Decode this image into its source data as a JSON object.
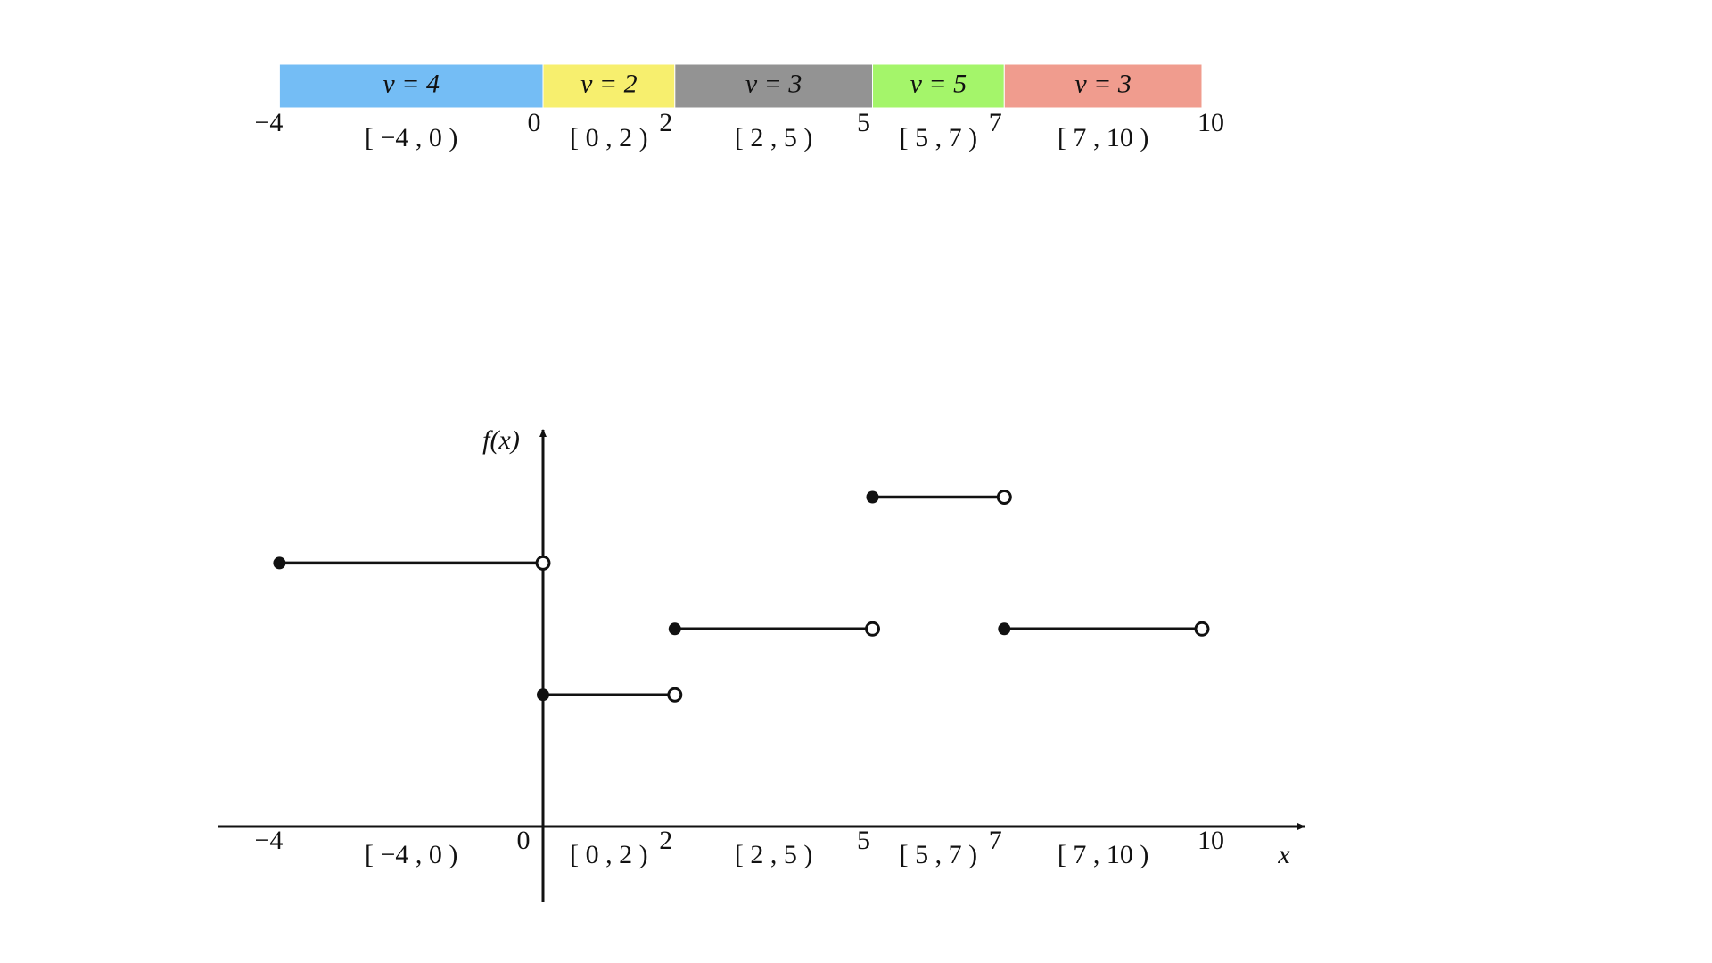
{
  "intervals": [
    {
      "start": -4,
      "end": 0,
      "value": 4,
      "color": "#74bdf5",
      "value_label": "v = 4",
      "interval_label": "[ −4 , 0 )"
    },
    {
      "start": 0,
      "end": 2,
      "value": 2,
      "color": "#f7ef6e",
      "value_label": "v = 2",
      "interval_label": "[ 0 , 2 )"
    },
    {
      "start": 2,
      "end": 5,
      "value": 3,
      "color": "#939393",
      "value_label": "v = 3",
      "interval_label": "[ 2 , 5 )"
    },
    {
      "start": 5,
      "end": 7,
      "value": 5,
      "color": "#a4f56a",
      "value_label": "v = 5",
      "interval_label": "[ 5 , 7 )"
    },
    {
      "start": 7,
      "end": 10,
      "value": 3,
      "color": "#f09c8e",
      "value_label": "v = 3",
      "interval_label": "[ 7 , 10 )"
    }
  ],
  "xticks": [
    {
      "value": -4,
      "label": "−4"
    },
    0,
    2,
    5,
    7,
    10
  ],
  "x_label": "x",
  "y_label": "f(x)"
}
